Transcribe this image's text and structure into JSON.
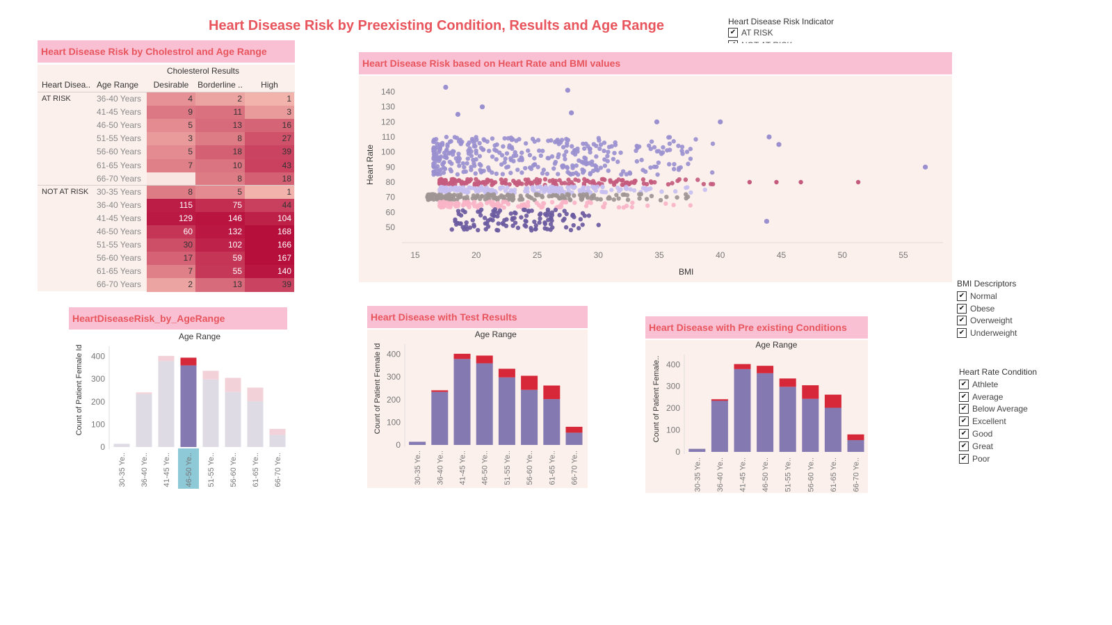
{
  "title": "Heart Disease Risk by Preexisting Condition, Results and Age Range",
  "risk_filter": {
    "title": "Heart Disease Risk Indicator",
    "items": [
      "AT RISK",
      "NOT AT RISK"
    ]
  },
  "bmi_filter": {
    "title": "BMI Descriptors",
    "items": [
      "Normal",
      "Obese",
      "Overweight",
      "Underweight"
    ]
  },
  "hr_filter": {
    "title": "Heart Rate Condition",
    "items": [
      "Athlete",
      "Average",
      "Below Average",
      "Excellent",
      "Good",
      "Great",
      "Poor"
    ]
  },
  "cholesterol_table": {
    "header": "Heart Disease Risk by Cholestrol and Age Range",
    "group_header": "Cholesterol  Results",
    "col_risk": "Heart Disea..",
    "col_age": "Age Range",
    "columns": [
      "Desirable",
      "Borderline ..",
      "High"
    ],
    "groups": [
      {
        "label": "AT RISK",
        "rows": [
          {
            "age": "36-40 Years",
            "values": [
              4,
              2,
              1
            ]
          },
          {
            "age": "41-45 Years",
            "values": [
              9,
              11,
              3
            ]
          },
          {
            "age": "46-50 Years",
            "values": [
              5,
              13,
              16
            ]
          },
          {
            "age": "51-55 Years",
            "values": [
              3,
              8,
              27
            ]
          },
          {
            "age": "56-60 Years",
            "values": [
              5,
              18,
              39
            ]
          },
          {
            "age": "61-65 Years",
            "values": [
              7,
              10,
              43
            ]
          },
          {
            "age": "66-70 Years",
            "values": [
              null,
              8,
              18
            ]
          }
        ]
      },
      {
        "label": "NOT AT RISK",
        "rows": [
          {
            "age": "30-35 Years",
            "values": [
              8,
              5,
              1
            ]
          },
          {
            "age": "36-40 Years",
            "values": [
              115,
              75,
              44
            ]
          },
          {
            "age": "41-45 Years",
            "values": [
              129,
              146,
              104
            ]
          },
          {
            "age": "46-50 Years",
            "values": [
              60,
              132,
              168
            ]
          },
          {
            "age": "51-55 Years",
            "values": [
              30,
              102,
              166
            ]
          },
          {
            "age": "56-60 Years",
            "values": [
              17,
              59,
              167
            ]
          },
          {
            "age": "61-65 Years",
            "values": [
              7,
              55,
              140
            ]
          },
          {
            "age": "66-70 Years",
            "values": [
              2,
              13,
              39
            ]
          }
        ]
      }
    ]
  },
  "scatter": {
    "header": "Heart Disease Risk based on Heart Rate and BMI values",
    "xlabel": "BMI",
    "ylabel": "Heart Rate"
  },
  "bar_age": {
    "header": "HeartDiseaseRisk_by_AgeRange",
    "top_label": "Age Range",
    "ylabel": "Count of Patient Female Id",
    "selected": "46-50 Ye.."
  },
  "bar_test": {
    "header": "Heart Disease with Test Results",
    "top_label": "Age Range",
    "ylabel": "Count of Patient Female Id"
  },
  "bar_pre": {
    "header": "Heart Disease with Pre existing Conditions",
    "top_label": "Age Range",
    "ylabel": "Count of Patient Female.."
  },
  "colors": {
    "accent": "#e8555d",
    "header_bg": "#f9c0d4",
    "panel_bg": "#fbf0ec",
    "not_at_risk": "#8479b0",
    "at_risk": "#d62839",
    "selection": "#8ec9d8"
  },
  "chart_data": [
    {
      "type": "table",
      "title": "Heart Disease Risk by Cholestrol and Age Range",
      "note": "values mirrored in cholesterol_table"
    },
    {
      "type": "scatter",
      "title": "Heart Disease Risk based on Heart Rate and BMI values",
      "xlabel": "BMI",
      "ylabel": "Heart Rate",
      "xlim": [
        15,
        57
      ],
      "ylim": [
        45,
        145
      ],
      "x_ticks": [
        15,
        20,
        25,
        30,
        35,
        40,
        45,
        50,
        55
      ],
      "y_ticks": [
        50,
        60,
        70,
        80,
        90,
        100,
        110,
        120,
        130,
        140
      ],
      "series": [
        {
          "color": "#9a90cf",
          "y_range": [
            85,
            110
          ],
          "x_range": [
            16.5,
            42
          ]
        },
        {
          "color": "#c45b7e",
          "y_range": [
            78,
            82
          ],
          "x_range": [
            17,
            42
          ]
        },
        {
          "color": "#c7bff0",
          "y_range": [
            73,
            77
          ],
          "x_range": [
            17,
            40
          ]
        },
        {
          "color": "#9e9595",
          "y_range": [
            68,
            72
          ],
          "x_range": [
            16,
            40
          ]
        },
        {
          "color": "#f8b4c8",
          "y_range": [
            63,
            67
          ],
          "x_range": [
            17,
            39
          ]
        },
        {
          "color": "#6a5aa0",
          "y_range": [
            48,
            62
          ],
          "x_range": [
            18,
            32
          ]
        }
      ],
      "outliers": [
        {
          "x": 17.5,
          "y": 143
        },
        {
          "x": 27.5,
          "y": 141
        },
        {
          "x": 20.5,
          "y": 130
        },
        {
          "x": 18.5,
          "y": 125
        },
        {
          "x": 27.8,
          "y": 126
        },
        {
          "x": 34.8,
          "y": 120
        },
        {
          "x": 40.0,
          "y": 120
        },
        {
          "x": 44.8,
          "y": 105
        },
        {
          "x": 56.8,
          "y": 90
        },
        {
          "x": 44.0,
          "y": 110
        },
        {
          "x": 43.8,
          "y": 54
        }
      ],
      "at_risk_outliers": [
        {
          "x": 51.3,
          "y": 80
        },
        {
          "x": 46.6,
          "y": 80
        },
        {
          "x": 44.6,
          "y": 80
        },
        {
          "x": 42.4,
          "y": 80
        }
      ]
    },
    {
      "type": "bar",
      "title": "HeartDiseaseRisk_by_AgeRange",
      "xlabel": "Age Range",
      "ylabel": "Count of Patient Female Id",
      "categories": [
        "30-35 Ye..",
        "36-40 Ye..",
        "41-45 Ye..",
        "46-50 Ye..",
        "51-55 Ye..",
        "56-60 Ye..",
        "61-65 Ye..",
        "66-70 Ye.."
      ],
      "series": [
        {
          "name": "NOT AT RISK",
          "values": [
            14,
            234,
            379,
            360,
            298,
            243,
            202,
            54
          ]
        },
        {
          "name": "AT RISK",
          "values": [
            0,
            7,
            23,
            34,
            38,
            62,
            60,
            26
          ]
        }
      ],
      "ylim": [
        0,
        420
      ],
      "y_ticks": [
        0,
        100,
        200,
        300,
        400
      ]
    },
    {
      "type": "bar",
      "title": "Heart Disease with Test Results",
      "xlabel": "Age Range",
      "ylabel": "Count of Patient Female Id",
      "categories": [
        "30-35 Ye..",
        "36-40 Ye..",
        "41-45 Ye..",
        "46-50 Ye..",
        "51-55 Ye..",
        "56-60 Ye..",
        "61-65 Ye..",
        "66-70 Ye.."
      ],
      "series": [
        {
          "name": "NOT AT RISK",
          "values": [
            14,
            234,
            379,
            360,
            298,
            243,
            202,
            54
          ]
        },
        {
          "name": "AT RISK",
          "values": [
            0,
            7,
            23,
            34,
            38,
            62,
            60,
            26
          ]
        }
      ],
      "ylim": [
        0,
        420
      ],
      "y_ticks": [
        0,
        100,
        200,
        300,
        400
      ]
    },
    {
      "type": "bar",
      "title": "Heart Disease with Pre existing Conditions",
      "xlabel": "Age Range",
      "ylabel": "Count of Patient Female..",
      "categories": [
        "30-35 Ye..",
        "36-40 Ye..",
        "41-45 Ye..",
        "46-50 Ye..",
        "51-55 Ye..",
        "56-60 Ye..",
        "61-65 Ye..",
        "66-70 Ye.."
      ],
      "series": [
        {
          "name": "NOT AT RISK",
          "values": [
            14,
            234,
            379,
            360,
            298,
            243,
            202,
            54
          ]
        },
        {
          "name": "AT RISK",
          "values": [
            0,
            7,
            23,
            34,
            38,
            62,
            60,
            26
          ]
        }
      ],
      "ylim": [
        0,
        420
      ],
      "y_ticks": [
        0,
        100,
        200,
        300,
        400
      ]
    }
  ]
}
